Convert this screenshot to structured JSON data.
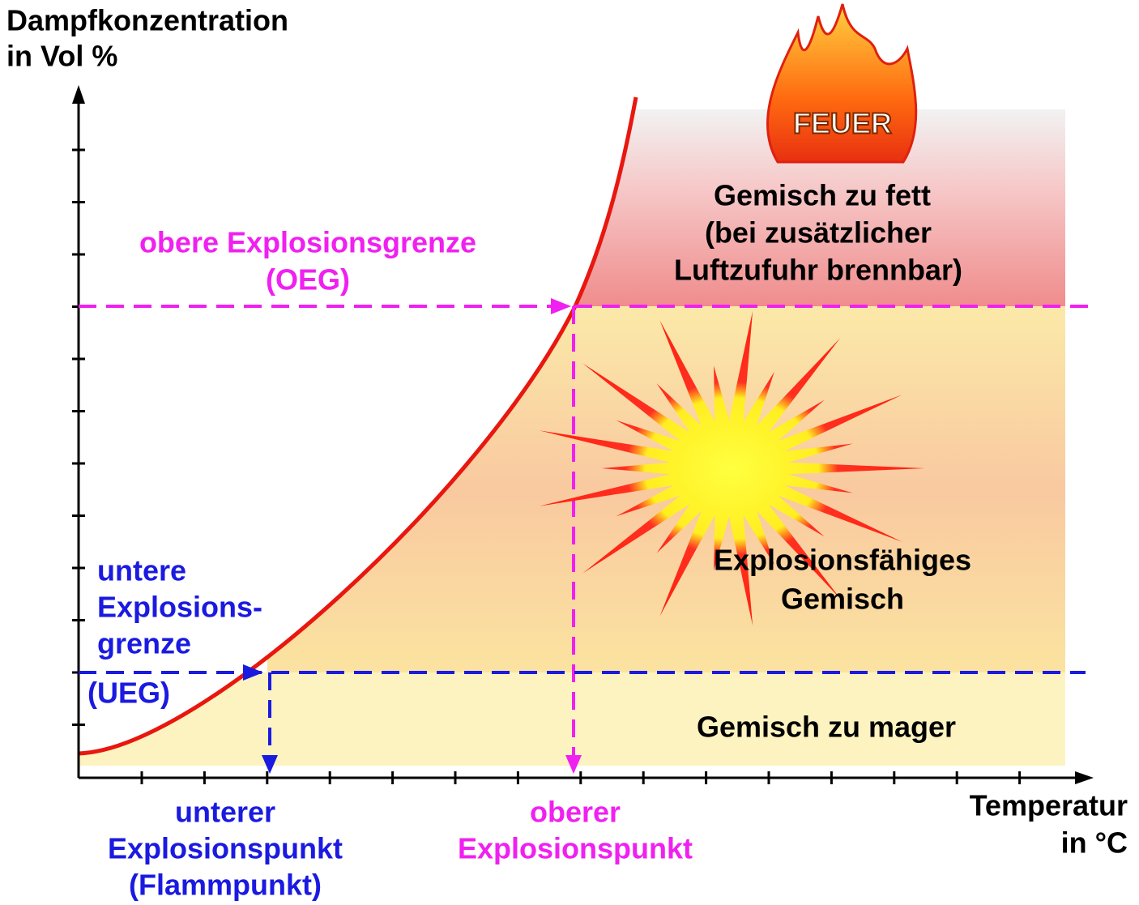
{
  "y_axis_label": [
    "Dampfkonzentration",
    "in Vol %"
  ],
  "x_axis_label": [
    "Temperatur",
    "in °C"
  ],
  "fire": "FEUER",
  "regions": {
    "rich": {
      "title": "Gemisch zu fett",
      "note": [
        "(bei zusätzlicher",
        "Luftzufuhr brennbar)"
      ]
    },
    "explosive": [
      "Explosionsfähiges",
      "Gemisch"
    ],
    "lean": "Gemisch zu mager"
  },
  "upper_limit": [
    "obere Explosionsgrenze",
    "(OEG)"
  ],
  "lower_limit": [
    "untere",
    "Explosions-",
    "grenze",
    "(UEG)"
  ],
  "lower_point": [
    "unterer",
    "Explosionspunkt",
    "(Flammpunkt)"
  ],
  "upper_point": [
    "oberer",
    "Explosionspunkt"
  ]
}
